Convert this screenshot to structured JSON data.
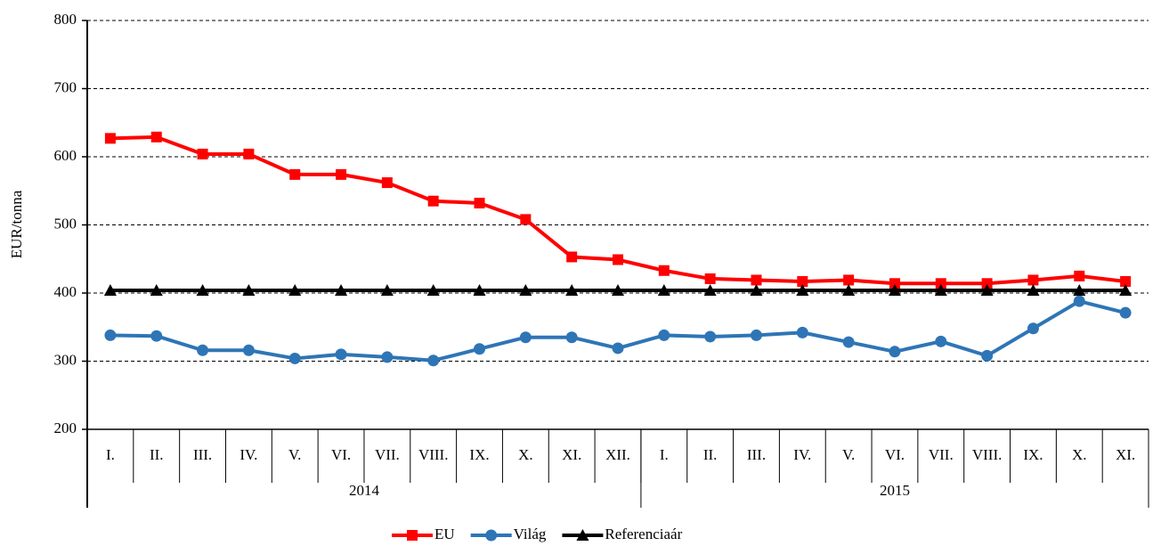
{
  "chart_data": {
    "type": "line",
    "y_label": "EUR/tonna",
    "groups": [
      {
        "label": "2014",
        "categories": [
          "I.",
          "II.",
          "III.",
          "IV.",
          "V.",
          "VI.",
          "VII.",
          "VIII.",
          "IX.",
          "X.",
          "XI.",
          "XII."
        ]
      },
      {
        "label": "2015",
        "categories": [
          "I.",
          "II.",
          "III.",
          "IV.",
          "V.",
          "VI.",
          "VII.",
          "VIII.",
          "IX.",
          "X.",
          "XI."
        ]
      }
    ],
    "series": [
      {
        "name": "EU",
        "color": "#ff0000",
        "marker": "square",
        "values": [
          627,
          629,
          604,
          604,
          574,
          574,
          562,
          535,
          532,
          508,
          453,
          449,
          433,
          421,
          419,
          417,
          419,
          414,
          414,
          414,
          419,
          425,
          417
        ]
      },
      {
        "name": "Világ",
        "color": "#2e75b6",
        "marker": "circle",
        "values": [
          338,
          337,
          316,
          316,
          304,
          310,
          306,
          301,
          318,
          335,
          335,
          319,
          338,
          336,
          338,
          342,
          328,
          314,
          329,
          308,
          348,
          388,
          371
        ]
      },
      {
        "name": "Referenciaár",
        "color": "#000000",
        "marker": "triangle",
        "values": [
          404,
          404,
          404,
          404,
          404,
          404,
          404,
          404,
          404,
          404,
          404,
          404,
          404,
          404,
          404,
          404,
          404,
          404,
          404,
          404,
          404,
          404,
          404
        ]
      }
    ],
    "ylim": [
      200,
      800
    ],
    "yticks": [
      200,
      300,
      400,
      500,
      600,
      700,
      800
    ],
    "grid": true,
    "legend": "bottom"
  }
}
